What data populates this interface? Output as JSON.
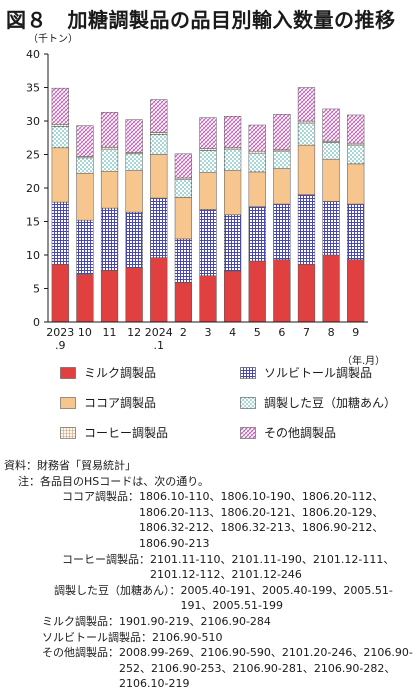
{
  "page": {
    "title": "図８　加糖調製品の品目別輸入数量の推移",
    "y_unit": "（千トン）",
    "x_unit": "（年.月）"
  },
  "chart_data": {
    "type": "bar",
    "stacked": true,
    "categories": [
      "2023\n.9",
      "10",
      "11",
      "12",
      "2024\n.1",
      "2",
      "3",
      "4",
      "5",
      "6",
      "7",
      "8",
      "9"
    ],
    "ylim": [
      0,
      40
    ],
    "yticks": [
      0,
      5,
      10,
      15,
      20,
      25,
      30,
      35,
      40
    ],
    "grid": false,
    "legend_position": "bottom",
    "series": [
      {
        "name": "ミルク調製品",
        "color": "#e04040",
        "pattern": "solid",
        "values": [
          8.6,
          7.1,
          7.7,
          8.1,
          9.6,
          5.9,
          6.9,
          7.6,
          9.1,
          9.3,
          8.6,
          10.0,
          9.3
        ]
      },
      {
        "name": "ソルビトール調製品",
        "color": "#5050b0",
        "pattern": "grid",
        "values": [
          9.3,
          8.1,
          9.3,
          8.3,
          8.9,
          6.5,
          9.9,
          8.4,
          8.1,
          8.3,
          10.4,
          8.0,
          8.3
        ]
      },
      {
        "name": "ココア調製品",
        "color": "#f7c68e",
        "pattern": "solid",
        "values": [
          8.1,
          7.0,
          5.5,
          6.2,
          6.5,
          6.2,
          5.5,
          6.6,
          5.2,
          5.3,
          7.4,
          6.3,
          6.0
        ]
      },
      {
        "name": "調製した豆（加糖あん）",
        "color": "#30a0a0",
        "pattern": "dots",
        "values": [
          3.2,
          2.3,
          3.3,
          2.5,
          3.0,
          2.7,
          3.3,
          3.2,
          2.8,
          2.6,
          3.3,
          2.5,
          2.8
        ]
      },
      {
        "name": "コーヒー調製品",
        "color": "#a07850",
        "pattern": "hatch",
        "values": [
          0.3,
          0.2,
          0.3,
          0.2,
          0.3,
          0.2,
          0.3,
          0.2,
          0.3,
          0.2,
          0.3,
          0.2,
          0.3
        ]
      },
      {
        "name": "その他調製品",
        "color": "#c040b0",
        "pattern": "diag",
        "values": [
          5.4,
          4.6,
          5.2,
          4.9,
          4.9,
          3.6,
          4.6,
          4.7,
          3.9,
          5.3,
          5.0,
          4.8,
          4.2
        ]
      }
    ]
  },
  "notes": {
    "source": "資料：財務省「貿易統計」",
    "note_intro": "注：各品目のHSコードは、次の通り。",
    "hs": [
      {
        "label": "ココア調製品：",
        "codes": "1806.10-110、1806.10-190、1806.20-112、1806.20-113、1806.20-121、1806.20-129、1806.32-212、1806.32-213、1806.90-212、1806.90-213"
      },
      {
        "label": "コーヒー調製品：",
        "codes": "2101.11-110、2101.11-190、2101.12-111、2101.12-112、2101.12-246"
      },
      {
        "label": "調製した豆（加糖あん）：",
        "codes": "2005.40-191、2005.40-199、2005.51-191、2005.51-199"
      },
      {
        "label": "ミルク調製品：",
        "codes": "1901.90-219、2106.90-284"
      },
      {
        "label": "ソルビトール調製品：",
        "codes": "2106.90-510"
      },
      {
        "label": "その他調製品：",
        "codes": "2008.99-269、2106.90-590、2101.20-246、2106.90-252、2106.90-253、2106.90-281、2106.90-282、2106.10-219"
      }
    ]
  }
}
